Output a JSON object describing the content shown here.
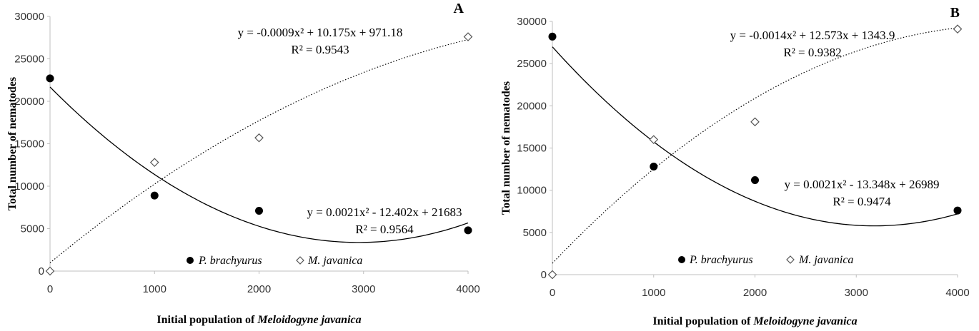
{
  "chart_data": [
    {
      "type": "scatter",
      "panel_label": "A",
      "xlabel_prefix": "Initial population of ",
      "xlabel_italic": "Meloidogyne javanica",
      "ylabel": "Total number of nematodes",
      "x_ticks": [
        "0",
        "1000",
        "2000",
        "3000",
        "4000"
      ],
      "y_ticks": [
        "0",
        "5000",
        "10000",
        "15000",
        "20000",
        "25000",
        "30000"
      ],
      "xlim": [
        0,
        4000
      ],
      "ylim": [
        0,
        30000
      ],
      "grid": false,
      "legend_position": "bottom-center",
      "series": [
        {
          "name": "P. brachyurus",
          "marker": "filled-circle",
          "color": "#000000",
          "x": [
            0,
            1000,
            2000,
            4000
          ],
          "y": [
            22700,
            8900,
            7100,
            4800
          ],
          "trend": {
            "a": 0.0021,
            "b": -12.402,
            "c": 21683,
            "style": "solid"
          },
          "equation": "y = 0.0021x² - 12.402x + 21683",
          "r2": "R² = 0.9564"
        },
        {
          "name": "M. javanica",
          "marker": "open-diamond",
          "color": "#000000",
          "x": [
            0,
            1000,
            2000,
            4000
          ],
          "y": [
            0,
            12800,
            15700,
            27600
          ],
          "trend": {
            "a": -0.0009,
            "b": 10.175,
            "c": 971.18,
            "style": "dotted"
          },
          "equation": "y = -0.0009x² + 10.175x + 971.18",
          "r2": "R² = 0.9543"
        }
      ]
    },
    {
      "type": "scatter",
      "panel_label": "B",
      "xlabel_prefix": "Initial population of ",
      "xlabel_italic": "Meloidogyne javanica",
      "ylabel": "Total number of nematodes",
      "x_ticks": [
        "0",
        "1000",
        "2000",
        "3000",
        "4000"
      ],
      "y_ticks": [
        "0",
        "5000",
        "10000",
        "15000",
        "20000",
        "25000",
        "30000"
      ],
      "xlim": [
        0,
        4000
      ],
      "ylim": [
        0,
        30000
      ],
      "grid": false,
      "legend_position": "bottom-center",
      "series": [
        {
          "name": "P. brachyurus",
          "marker": "filled-circle",
          "color": "#000000",
          "x": [
            0,
            1000,
            2000,
            4000
          ],
          "y": [
            28200,
            12800,
            11200,
            7600
          ],
          "trend": {
            "a": 0.0021,
            "b": -13.348,
            "c": 26989,
            "style": "solid"
          },
          "equation": "y = 0.0021x² - 13.348x + 26989",
          "r2": "R² = 0.9474"
        },
        {
          "name": "M. javanica",
          "marker": "open-diamond",
          "color": "#000000",
          "x": [
            0,
            1000,
            2000,
            4000
          ],
          "y": [
            0,
            16000,
            18100,
            29100
          ],
          "trend": {
            "a": -0.0014,
            "b": 12.573,
            "c": 1343.9,
            "style": "dotted"
          },
          "equation": "y = -0.0014x² + 12.573x + 1343.9",
          "r2": "R² = 0.9382"
        }
      ]
    }
  ]
}
